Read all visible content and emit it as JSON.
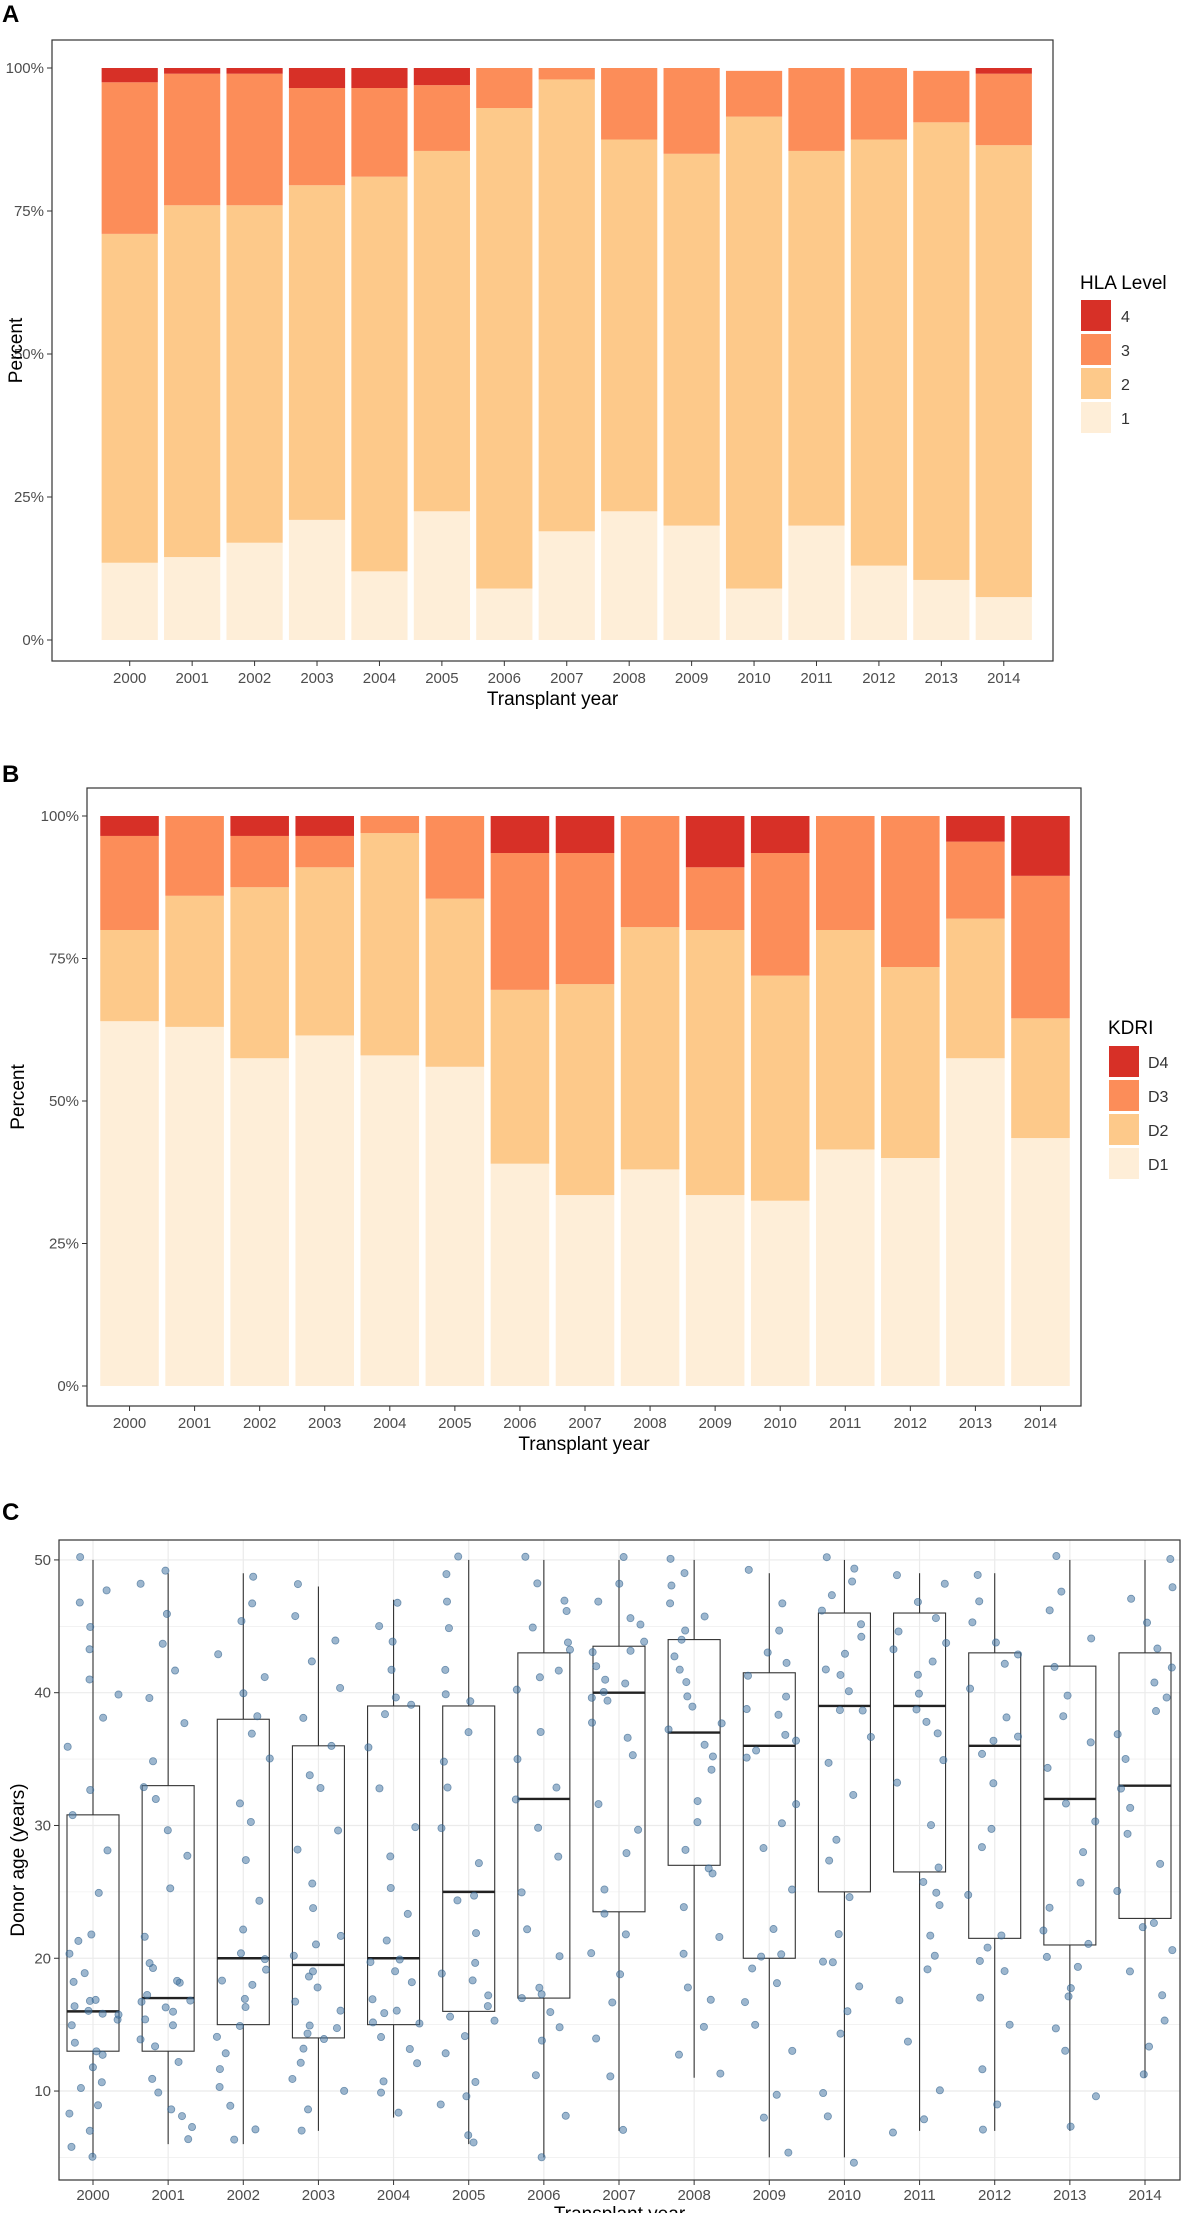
{
  "colors": {
    "level4": "#d73027",
    "level3": "#fc8d59",
    "level2": "#fdc98a",
    "level1": "#feeed8",
    "point": "#4a7aa6",
    "grid": "#ebebeb",
    "axis": "#333333"
  },
  "chart_data": [
    {
      "panel": "A",
      "type": "bar",
      "stacked": true,
      "xlabel": "Transplant year",
      "ylabel": "Percent",
      "ylim": [
        0,
        100
      ],
      "yticks": [
        "0%",
        "25%",
        "50%",
        "75%",
        "100%"
      ],
      "categories": [
        "2000",
        "2001",
        "2002",
        "2003",
        "2004",
        "2005",
        "2006",
        "2007",
        "2008",
        "2009",
        "2010",
        "2011",
        "2012",
        "2013",
        "2014"
      ],
      "legend_title": "HLA Level",
      "legend_labels": [
        "4",
        "3",
        "2",
        "1"
      ],
      "series": [
        {
          "name": "1",
          "color_key": "level1",
          "values": [
            13.5,
            14.5,
            17,
            21,
            12,
            22.5,
            9,
            19,
            22.5,
            20,
            9,
            20,
            13,
            10.5,
            7.5
          ]
        },
        {
          "name": "2",
          "color_key": "level2",
          "values": [
            57.5,
            61.5,
            59,
            58.5,
            69,
            63,
            84,
            79,
            65,
            65,
            82.5,
            65.5,
            74.5,
            80,
            79
          ]
        },
        {
          "name": "3",
          "color_key": "level3",
          "values": [
            26.5,
            23,
            23,
            17,
            15.5,
            11.5,
            7,
            2,
            12.5,
            15,
            8,
            14.5,
            12.5,
            9,
            12.5
          ]
        },
        {
          "name": "4",
          "color_key": "level4",
          "values": [
            2.5,
            1,
            1,
            3.5,
            3.5,
            3,
            0,
            0,
            0,
            0,
            0,
            0,
            0,
            0,
            1
          ]
        }
      ]
    },
    {
      "panel": "B",
      "type": "bar",
      "stacked": true,
      "xlabel": "Transplant year",
      "ylabel": "Percent",
      "ylim": [
        0,
        100
      ],
      "yticks": [
        "0%",
        "25%",
        "50%",
        "75%",
        "100%"
      ],
      "categories": [
        "2000",
        "2001",
        "2002",
        "2003",
        "2004",
        "2005",
        "2006",
        "2007",
        "2008",
        "2009",
        "2010",
        "2011",
        "2012",
        "2013",
        "2014"
      ],
      "legend_title": "KDRI",
      "legend_labels": [
        "D4",
        "D3",
        "D2",
        "D1"
      ],
      "series": [
        {
          "name": "D1",
          "color_key": "level1",
          "values": [
            64,
            63,
            57.5,
            61.5,
            58,
            56,
            39,
            33.5,
            38,
            33.5,
            32.5,
            41.5,
            40,
            57.5,
            43.5
          ]
        },
        {
          "name": "D2",
          "color_key": "level2",
          "values": [
            16,
            23,
            30,
            29.5,
            39,
            29.5,
            30.5,
            37,
            42.5,
            46.5,
            39.5,
            38.5,
            33.5,
            24.5,
            21
          ]
        },
        {
          "name": "D3",
          "color_key": "level3",
          "values": [
            16.5,
            14,
            9,
            5.5,
            3,
            14.5,
            24,
            23,
            19.5,
            11,
            21.5,
            20,
            26.5,
            13.5,
            25
          ]
        },
        {
          "name": "D4",
          "color_key": "level4",
          "values": [
            3.5,
            0,
            3.5,
            3.5,
            0,
            0,
            6.5,
            6.5,
            0,
            9,
            6.5,
            0,
            0,
            4.5,
            10.5
          ]
        }
      ]
    },
    {
      "panel": "C",
      "type": "boxplot",
      "xlabel": "Transplant year",
      "ylabel": "Donor age (years)",
      "ylim": [
        3.3,
        51.5
      ],
      "yticks": [
        10,
        20,
        30,
        40,
        50
      ],
      "categories": [
        "2000",
        "2001",
        "2002",
        "2003",
        "2004",
        "2005",
        "2006",
        "2007",
        "2008",
        "2009",
        "2010",
        "2011",
        "2012",
        "2013",
        "2014"
      ],
      "boxes": [
        {
          "min": 5,
          "q1": 13,
          "median": 16,
          "q3": 30.8,
          "max": 50
        },
        {
          "min": 6,
          "q1": 13,
          "median": 17,
          "q3": 33,
          "max": 49
        },
        {
          "min": 6,
          "q1": 15,
          "median": 20,
          "q3": 38,
          "max": 49
        },
        {
          "min": 7,
          "q1": 14,
          "median": 19.5,
          "q3": 36,
          "max": 48
        },
        {
          "min": 8,
          "q1": 15,
          "median": 20,
          "q3": 39,
          "max": 47
        },
        {
          "min": 6,
          "q1": 16,
          "median": 25,
          "q3": 39,
          "max": 50
        },
        {
          "min": 5,
          "q1": 17,
          "median": 32,
          "q3": 43,
          "max": 50
        },
        {
          "min": 7,
          "q1": 23.5,
          "median": 40,
          "q3": 43.5,
          "max": 50
        },
        {
          "min": 11,
          "q1": 27,
          "median": 37,
          "q3": 44,
          "max": 50
        },
        {
          "min": 5,
          "q1": 20,
          "median": 36,
          "q3": 41.5,
          "max": 49
        },
        {
          "min": 5,
          "q1": 25,
          "median": 39,
          "q3": 46,
          "max": 50
        },
        {
          "min": 7,
          "q1": 26.5,
          "median": 39,
          "q3": 46,
          "max": 49
        },
        {
          "min": 7,
          "q1": 21.5,
          "median": 36,
          "q3": 43,
          "max": 49
        },
        {
          "min": 7,
          "q1": 21,
          "median": 32,
          "q3": 42,
          "max": 50
        },
        {
          "min": 11,
          "q1": 23,
          "median": 33,
          "q3": 43,
          "max": 50
        }
      ],
      "jitter_points": [
        [
          5,
          6,
          7,
          8,
          9,
          10,
          11,
          12,
          13,
          13,
          14,
          15,
          15,
          16,
          16,
          16,
          16,
          17,
          17,
          18,
          19,
          20,
          21,
          22,
          25,
          28,
          31,
          33,
          36,
          38,
          40,
          41,
          43,
          45,
          47,
          48,
          50
        ],
        [
          6,
          7,
          8,
          9,
          10,
          11,
          12,
          13,
          14,
          15,
          15,
          16,
          16,
          17,
          17,
          17,
          18,
          18,
          19,
          20,
          22,
          25,
          28,
          30,
          32,
          33,
          35,
          38,
          40,
          42,
          44,
          46,
          48,
          49
        ],
        [
          6,
          7,
          9,
          10,
          12,
          13,
          14,
          15,
          16,
          17,
          18,
          18,
          19,
          20,
          20,
          22,
          24,
          27,
          30,
          32,
          35,
          37,
          38,
          40,
          41,
          43,
          45,
          47,
          49
        ],
        [
          7,
          9,
          10,
          11,
          12,
          13,
          14,
          14,
          15,
          15,
          16,
          17,
          18,
          19,
          19,
          20,
          21,
          22,
          24,
          26,
          28,
          30,
          33,
          34,
          36,
          38,
          40,
          42,
          44,
          46,
          48
        ],
        [
          8,
          10,
          11,
          12,
          13,
          14,
          15,
          15,
          16,
          16,
          17,
          18,
          19,
          20,
          20,
          21,
          23,
          25,
          28,
          30,
          33,
          36,
          38,
          39,
          40,
          42,
          44,
          45,
          47
        ],
        [
          6,
          7,
          9,
          10,
          11,
          13,
          14,
          15,
          16,
          16,
          17,
          18,
          19,
          20,
          22,
          24,
          25,
          27,
          30,
          33,
          35,
          37,
          39,
          40,
          42,
          45,
          47,
          49,
          50
        ],
        [
          5,
          8,
          11,
          14,
          15,
          16,
          17,
          17,
          18,
          20,
          22,
          25,
          28,
          30,
          32,
          33,
          35,
          37,
          40,
          41,
          42,
          43,
          44,
          45,
          46,
          47,
          48,
          50
        ],
        [
          7,
          11,
          14,
          17,
          19,
          20,
          22,
          23,
          25,
          28,
          30,
          32,
          35,
          37,
          38,
          39,
          40,
          40,
          41,
          41,
          42,
          43,
          43,
          44,
          45,
          46,
          47,
          48,
          50
        ],
        [
          11,
          13,
          15,
          17,
          18,
          20,
          22,
          24,
          26,
          27,
          28,
          30,
          32,
          34,
          35,
          36,
          37,
          38,
          39,
          40,
          41,
          42,
          43,
          44,
          45,
          46,
          47,
          48,
          49,
          50
        ],
        [
          5,
          8,
          10,
          13,
          15,
          17,
          18,
          19,
          20,
          20,
          22,
          25,
          28,
          30,
          32,
          35,
          36,
          36,
          37,
          38,
          39,
          40,
          41,
          42,
          43,
          45,
          47,
          49
        ],
        [
          5,
          8,
          10,
          14,
          16,
          18,
          20,
          20,
          22,
          25,
          27,
          29,
          32,
          35,
          37,
          39,
          39,
          40,
          41,
          42,
          43,
          44,
          45,
          46,
          47,
          48,
          49,
          50
        ],
        [
          7,
          8,
          10,
          14,
          17,
          19,
          20,
          22,
          24,
          25,
          26,
          27,
          30,
          33,
          35,
          37,
          38,
          39,
          40,
          41,
          42,
          43,
          44,
          45,
          46,
          47,
          48,
          49
        ],
        [
          7,
          9,
          12,
          15,
          17,
          19,
          20,
          21,
          22,
          25,
          28,
          30,
          33,
          35,
          36,
          37,
          38,
          40,
          42,
          43,
          44,
          45,
          47,
          49
        ],
        [
          7,
          10,
          13,
          15,
          17,
          18,
          19,
          20,
          21,
          22,
          24,
          26,
          28,
          30,
          32,
          34,
          36,
          38,
          40,
          42,
          44,
          46,
          48,
          50
        ],
        [
          11,
          13,
          15,
          17,
          19,
          21,
          22,
          23,
          25,
          27,
          29,
          31,
          33,
          35,
          37,
          39,
          40,
          41,
          42,
          43,
          45,
          47,
          48,
          50
        ]
      ]
    }
  ],
  "panel_labels": [
    "A",
    "B",
    "C"
  ],
  "legends": {
    "a": {
      "title": "HLA Level",
      "items": [
        "4",
        "3",
        "2",
        "1"
      ]
    },
    "b": {
      "title": "KDRI",
      "items": [
        "D4",
        "D3",
        "D2",
        "D1"
      ]
    }
  }
}
